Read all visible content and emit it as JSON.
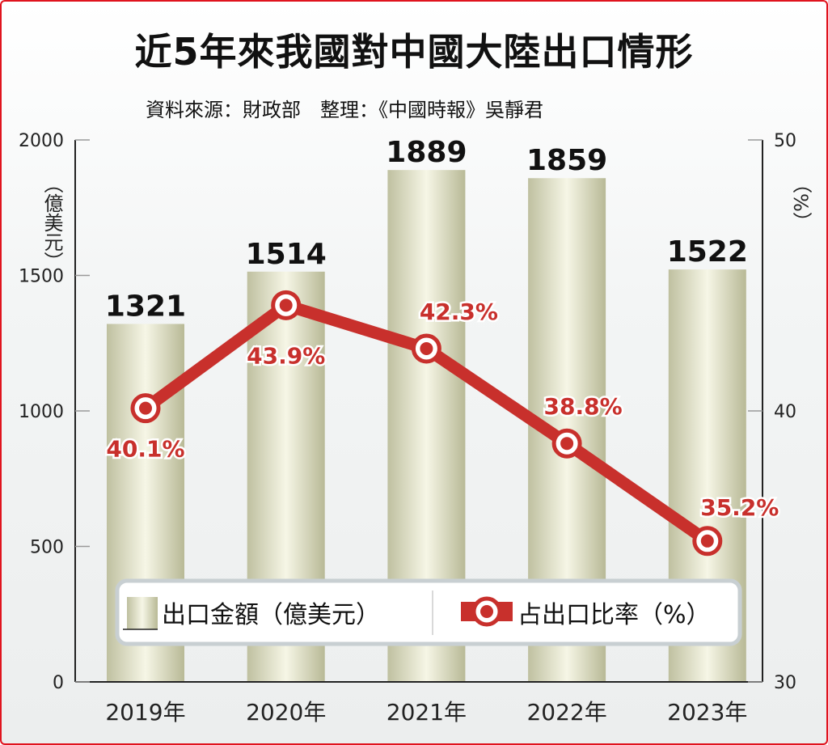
{
  "title": "近5年來我國對中國大陸出口情形",
  "subtitle": "資料來源：財政部　整理：《中國時報》吳靜君",
  "chart_data": {
    "type": "bar+line",
    "categories": [
      "2019年",
      "2020年",
      "2021年",
      "2022年",
      "2023年"
    ],
    "series": [
      {
        "name": "出口金額（億美元）",
        "type": "bar",
        "axis": "left",
        "values": [
          1321,
          1514,
          1889,
          1859,
          1522
        ],
        "labels": [
          "1321",
          "1514",
          "1889",
          "1859",
          "1522"
        ]
      },
      {
        "name": "占出口比率（%）",
        "type": "line",
        "axis": "right",
        "values": [
          40.1,
          43.9,
          42.3,
          38.8,
          35.2
        ],
        "labels": [
          "40.1%",
          "43.9%",
          "42.3%",
          "38.8%",
          "35.2%"
        ]
      }
    ],
    "ylabel": "億美元",
    "y2label": "%",
    "ylim": [
      0,
      2000
    ],
    "yticks": [
      "0",
      "500",
      "1000",
      "1500",
      "2000"
    ],
    "y2lim": [
      30,
      50
    ],
    "y2ticks": [
      "30",
      "40",
      "50"
    ],
    "legend": "bottom-center",
    "colors": {
      "bar": "#d8d8b8",
      "line": "#c8302c"
    }
  }
}
